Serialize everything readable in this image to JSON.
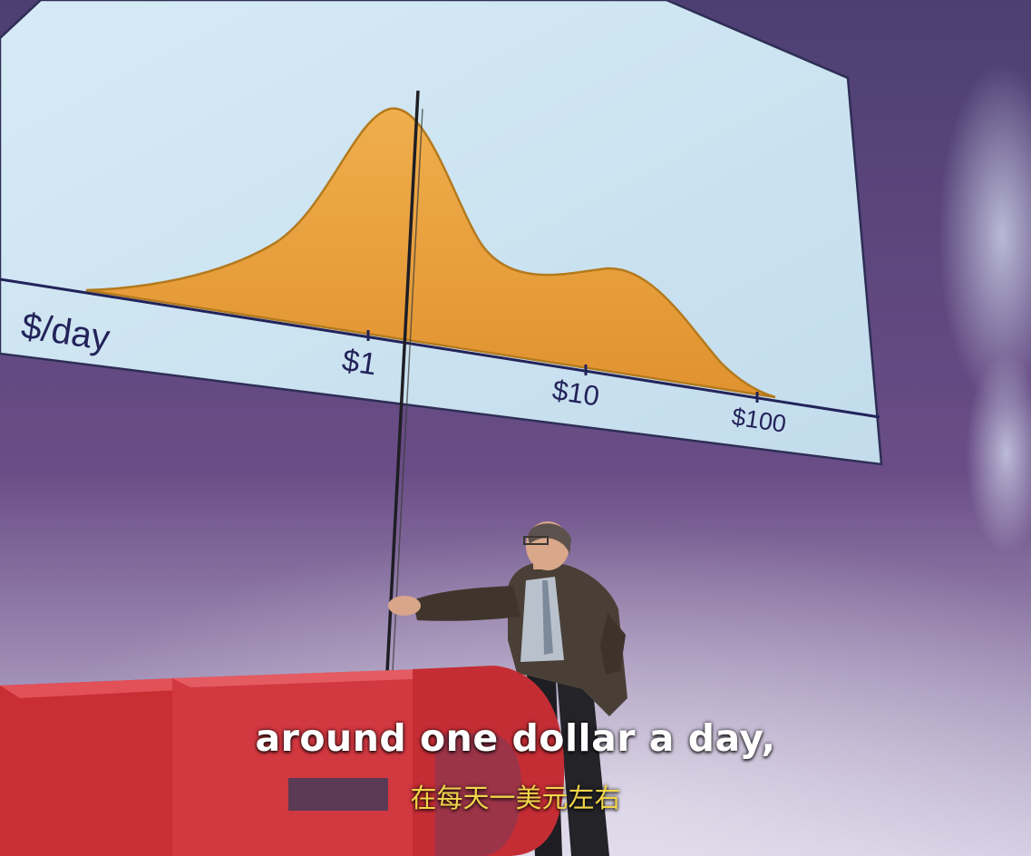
{
  "colors": {
    "wall_top": "#4d3f72",
    "wall_mid": "#6a4d86",
    "wall_bottom": "#cfc8e0",
    "screen": "#c9dfee",
    "distribution_fill": "#e89e39",
    "distribution_edge": "#b47a1d",
    "axis": "#23235a",
    "letters": "#d8373e",
    "subtitle_zh": "#f1d54a"
  },
  "slide": {
    "axis_unit_label": "$/day",
    "tick_1": "$1",
    "tick_10": "$10",
    "tick_100": "$100"
  },
  "subtitles": {
    "english": "around one dollar a day,",
    "chinese": "在每天一美元左右"
  }
}
